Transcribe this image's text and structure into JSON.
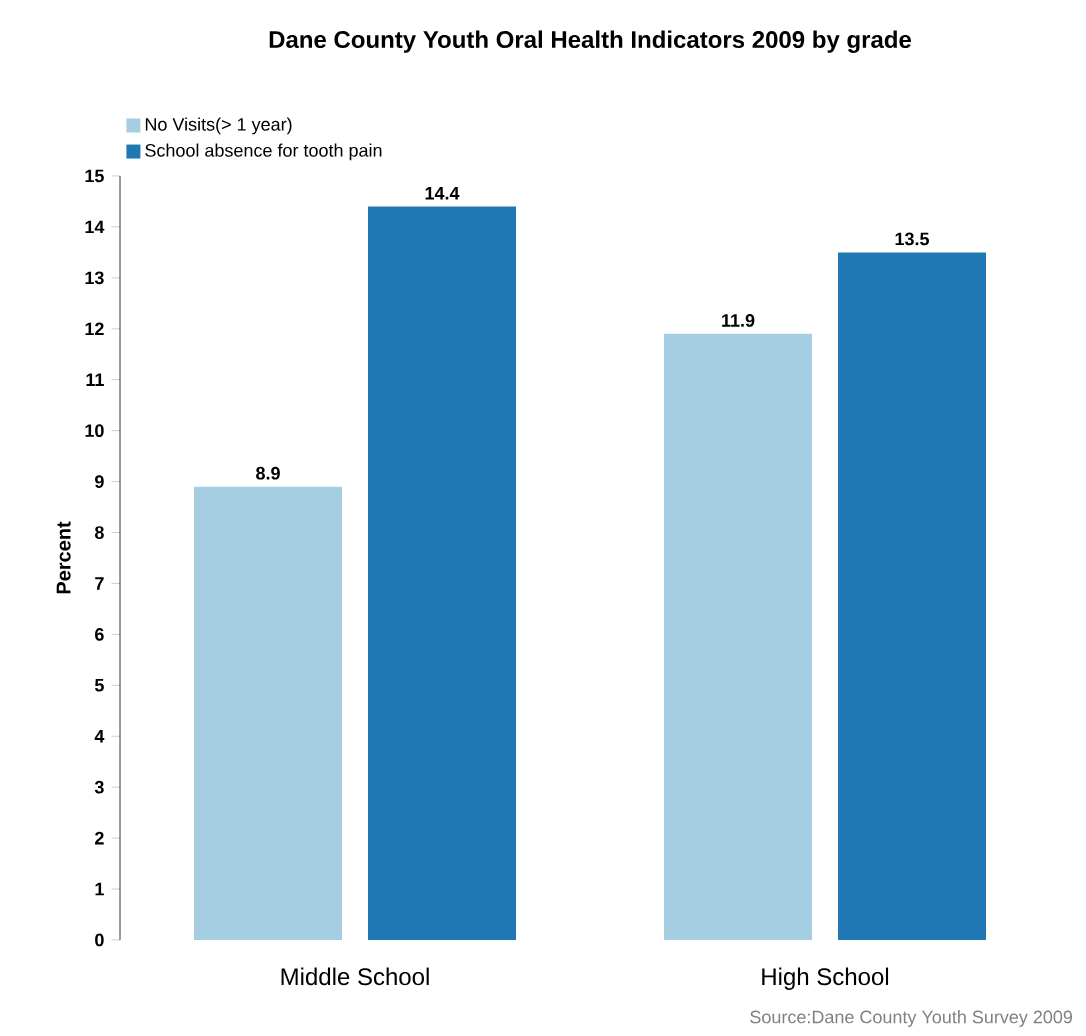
{
  "chart_data": {
    "type": "bar",
    "title": "Dane County Youth Oral Health Indicators 2009 by grade",
    "ylabel": "Percent",
    "categories": [
      "Middle School",
      "High School"
    ],
    "series": [
      {
        "name": "No Visits(> 1 year)",
        "color": "#a6cee3",
        "values": [
          8.9,
          11.9
        ]
      },
      {
        "name": "School absence for tooth pain",
        "color": "#1f78b4",
        "values": [
          14.4,
          13.5
        ]
      }
    ],
    "ylim": [
      0,
      15
    ],
    "yticks": [
      0,
      1,
      2,
      3,
      4,
      5,
      6,
      7,
      8,
      9,
      10,
      11,
      12,
      13,
      14,
      15
    ],
    "data_labels": true,
    "legend": "top left",
    "grid": false,
    "annotations": [
      "Source:Dane County Youth Survey 2009"
    ]
  }
}
